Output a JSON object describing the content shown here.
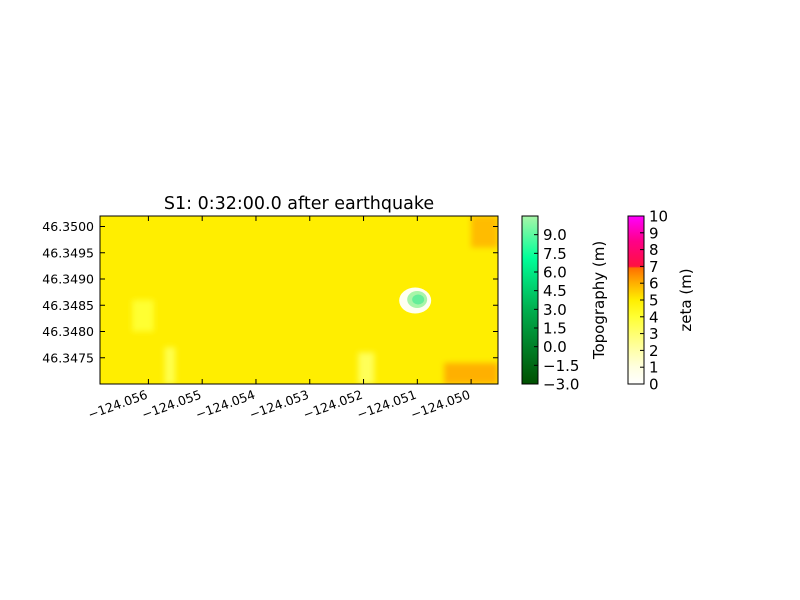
{
  "chart_data": {
    "type": "heatmap",
    "title": "S1: 0:32:00.0 after earthquake",
    "xlim": [
      -124.0569,
      -124.0495
    ],
    "ylim": [
      46.347,
      46.3502
    ],
    "x_ticks": [
      {
        "value": -124.056,
        "label": "−124.056"
      },
      {
        "value": -124.055,
        "label": "−124.055"
      },
      {
        "value": -124.054,
        "label": "−124.054"
      },
      {
        "value": -124.053,
        "label": "−124.053"
      },
      {
        "value": -124.052,
        "label": "−124.052"
      },
      {
        "value": -124.051,
        "label": "−124.051"
      },
      {
        "value": -124.05,
        "label": "−124.050"
      }
    ],
    "y_ticks": [
      {
        "value": 46.3475,
        "label": "46.3475"
      },
      {
        "value": 46.348,
        "label": "46.3480"
      },
      {
        "value": 46.3485,
        "label": "46.3485"
      },
      {
        "value": 46.349,
        "label": "46.3490"
      },
      {
        "value": 46.3495,
        "label": "46.3495"
      },
      {
        "value": 46.35,
        "label": "46.3500"
      }
    ],
    "field": {
      "name": "zeta",
      "background_value": 5.0,
      "regions": [
        {
          "x": [
            -124.0505,
            -124.0495
          ],
          "y": [
            46.347,
            46.3474
          ],
          "value": 6.0
        },
        {
          "x": [
            -124.05,
            -124.0495
          ],
          "y": [
            46.3496,
            46.3502
          ],
          "value": 5.8
        },
        {
          "x": [
            -124.0563,
            -124.0559
          ],
          "y": [
            46.348,
            46.3486
          ],
          "value": 4.0
        },
        {
          "x": [
            -124.0557,
            -124.0555
          ],
          "y": [
            46.347,
            46.3477
          ],
          "value": 3.6
        },
        {
          "x": [
            -124.0521,
            -124.0518
          ],
          "y": [
            46.347,
            46.3476
          ],
          "value": 3.4
        }
      ]
    },
    "island": {
      "center": [
        -124.05104,
        46.34859
      ],
      "topography_m": 8.0,
      "surround_zeta": 0.5
    },
    "colorbars": [
      {
        "label": "Topography (m)",
        "range": [
          -3.0,
          10.5
        ],
        "colors": [
          "#005000",
          "#00ff99",
          "#a8f5a8"
        ],
        "ticks": [
          {
            "value": -3.0,
            "label": "−3.0"
          },
          {
            "value": -1.5,
            "label": "−1.5"
          },
          {
            "value": 0.0,
            "label": "0.0"
          },
          {
            "value": 1.5,
            "label": "1.5"
          },
          {
            "value": 3.0,
            "label": "3.0"
          },
          {
            "value": 4.5,
            "label": "4.5"
          },
          {
            "value": 6.0,
            "label": "6.0"
          },
          {
            "value": 7.5,
            "label": "7.5"
          },
          {
            "value": 9.0,
            "label": "9.0"
          }
        ]
      },
      {
        "label": "zeta (m)",
        "range": [
          0,
          10
        ],
        "ticks": [
          {
            "value": 0,
            "label": "0"
          },
          {
            "value": 1,
            "label": "1"
          },
          {
            "value": 2,
            "label": "2"
          },
          {
            "value": 3,
            "label": "3"
          },
          {
            "value": 4,
            "label": "4"
          },
          {
            "value": 5,
            "label": "5"
          },
          {
            "value": 6,
            "label": "6"
          },
          {
            "value": 7,
            "label": "7"
          },
          {
            "value": 8,
            "label": "8"
          },
          {
            "value": 9,
            "label": "9"
          },
          {
            "value": 10,
            "label": "10"
          }
        ],
        "stops": [
          {
            "value": 0,
            "color": "#ffffff"
          },
          {
            "value": 1,
            "color": "#ffffe0"
          },
          {
            "value": 2,
            "color": "#ffffaa"
          },
          {
            "value": 3,
            "color": "#ffff70"
          },
          {
            "value": 4,
            "color": "#ffff33"
          },
          {
            "value": 5,
            "color": "#ffee00"
          },
          {
            "value": 6,
            "color": "#ffb000"
          },
          {
            "value": 6.9,
            "color": "#ff7000"
          },
          {
            "value": 7.0,
            "color": "#ff1040"
          },
          {
            "value": 8.5,
            "color": "#ff0088"
          },
          {
            "value": 10,
            "color": "#ff00ff"
          }
        ]
      }
    ]
  }
}
